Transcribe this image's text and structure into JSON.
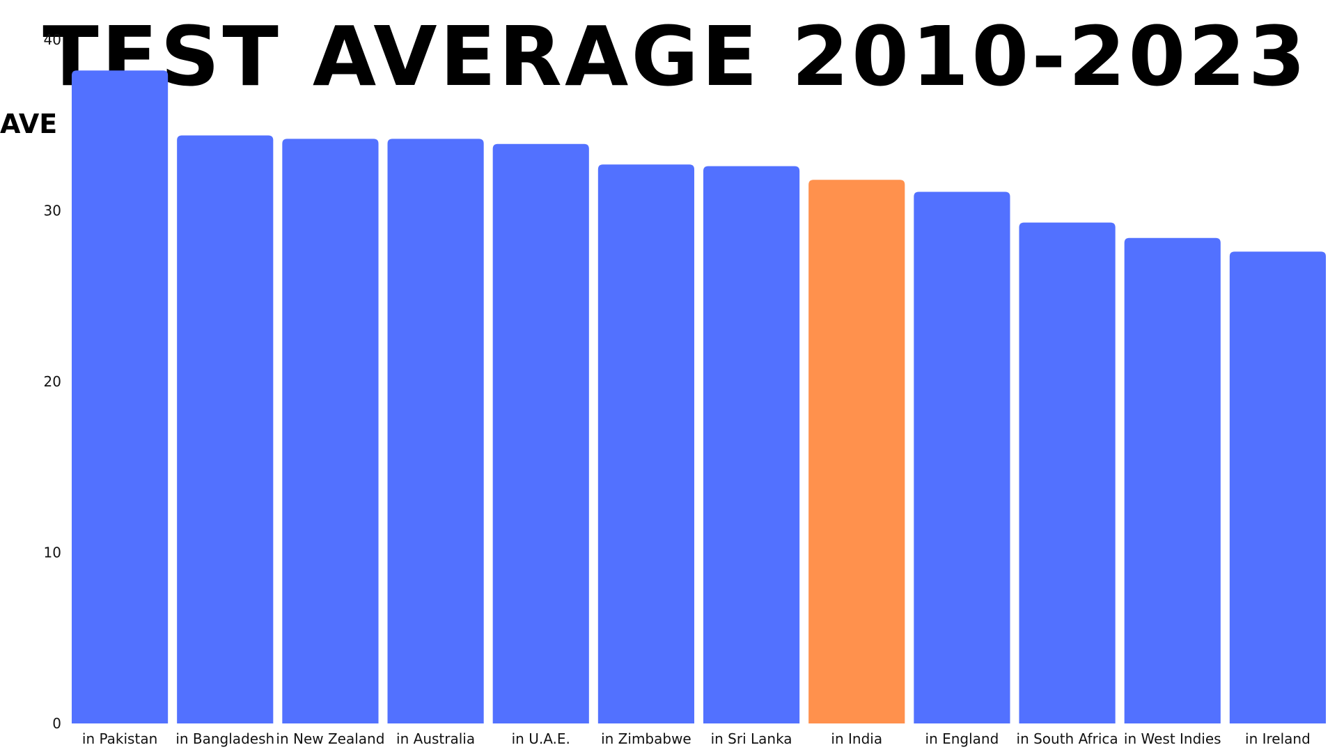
{
  "chart_data": {
    "type": "bar",
    "title": "TEST AVERAGE 2010-2023",
    "ylabel": "AVE",
    "xlabel": "",
    "ylim": [
      0,
      40
    ],
    "yticks": [
      0,
      10,
      20,
      30,
      40
    ],
    "grid": false,
    "categories": [
      "in Pakistan",
      "in Bangladesh",
      "in New Zealand",
      "in Australia",
      "in U.A.E.",
      "in Zimbabwe",
      "in Sri Lanka",
      "in India",
      "in England",
      "in South Africa",
      "in West Indies",
      "in Ireland"
    ],
    "values": [
      38.2,
      34.4,
      34.2,
      34.2,
      33.9,
      32.7,
      32.6,
      31.8,
      31.1,
      29.3,
      28.4,
      27.6
    ],
    "colors": {
      "default": "#5271FF",
      "highlight": "#FF914D",
      "highlight_category": "in India"
    }
  }
}
